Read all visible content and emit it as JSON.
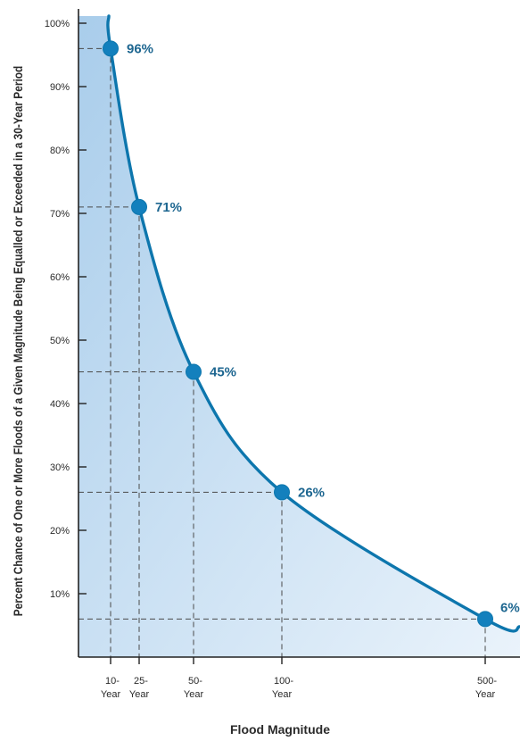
{
  "chart_data": {
    "type": "line",
    "title": "",
    "xlabel": "Flood Magnitude",
    "ylabel": "Percent Chance of One or More Floods of a Given Magnitude Being Equalled or Exceeded in a 30-Year Period",
    "x_return_periods": [
      10,
      25,
      50,
      100,
      500
    ],
    "x_tick_labels": [
      [
        "10-",
        "Year"
      ],
      [
        "25-",
        "Year"
      ],
      [
        "50-",
        "Year"
      ],
      [
        "100-",
        "Year"
      ],
      [
        "500-",
        "Year"
      ]
    ],
    "values": [
      96,
      71,
      45,
      26,
      6
    ],
    "point_labels": [
      "96%",
      "71%",
      "45%",
      "26%",
      "6%"
    ],
    "y_ticks": [
      10,
      20,
      30,
      40,
      50,
      60,
      70,
      80,
      90,
      100
    ],
    "y_tick_labels": [
      "10%",
      "20%",
      "30%",
      "40%",
      "50%",
      "60%",
      "70%",
      "80%",
      "90%",
      "100%"
    ],
    "ylim": [
      0,
      100
    ],
    "grid": false,
    "colors": {
      "curve": "#0d76ad",
      "marker": "#1380bd",
      "label": "#1d6690",
      "fill_top": "#a9cdeb",
      "fill_bottom": "#eaf3fb",
      "guide": "#4a4a4a",
      "axis": "#222222"
    }
  }
}
